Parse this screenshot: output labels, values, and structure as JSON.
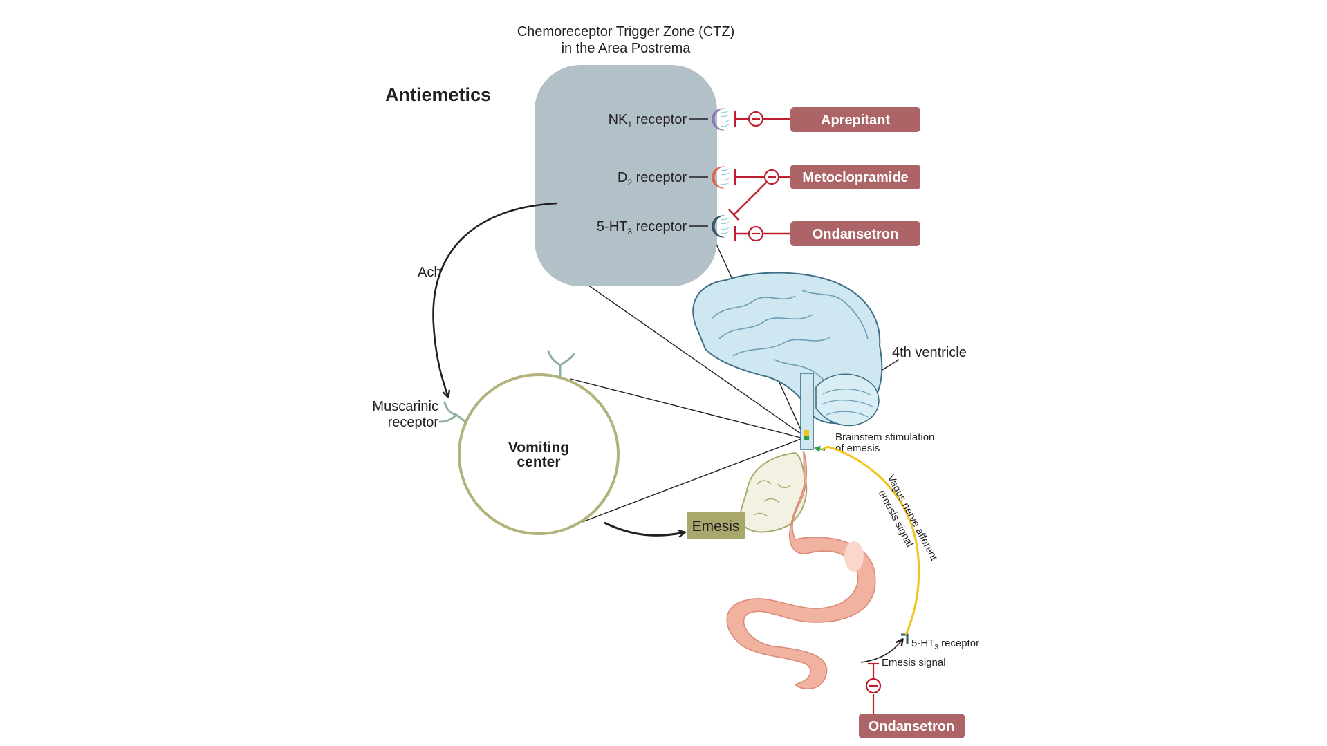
{
  "title": {
    "line1": "Chemoreceptor Trigger Zone (CTZ)",
    "line2": "in the Area Postrema"
  },
  "heading": "Antiemetics",
  "ctz_receptors": [
    {
      "name": "NK",
      "sub": "1",
      "suffix": " receptor",
      "color": "#8e78b4",
      "drug": "Aprepitant"
    },
    {
      "name": "D",
      "sub": "2",
      "suffix": " receptor",
      "color": "#d9694e",
      "drug": "Metoclopramide"
    },
    {
      "name": "5-HT",
      "sub": "3",
      "suffix": " receptor",
      "color": "#2f5566",
      "drug": "Ondansetron"
    }
  ],
  "labels": {
    "ach": "Ach",
    "muscarinic_line1": "Muscarinic",
    "muscarinic_line2": "receptor",
    "vomiting_line1": "Vomiting",
    "vomiting_line2": "center",
    "emesis": "Emesis",
    "fourth_ventricle": "4th ventricle",
    "brainstem_line1": "Brainstem stimulation",
    "brainstem_line2": "of emesis",
    "vagus_line1": "Vagus nerve afferent",
    "vagus_line2": "emesis signal",
    "gut_receptor_name": "5-HT",
    "gut_receptor_sub": "3",
    "gut_receptor_suffix": " receptor",
    "emesis_signal": "Emesis signal",
    "gut_drug": "Ondansetron"
  },
  "colors": {
    "ctz_box": "#b2c0c8",
    "drug_box": "#ac6466",
    "inhibit": "#be1e2d",
    "vomiting_circle": "#b3b27a",
    "emesis_box": "#a8a86c",
    "brain": "#cfe7f1",
    "gut": "#f2b2a0",
    "vagus": "#f2c318",
    "receptor_green": "#8fb19b"
  }
}
